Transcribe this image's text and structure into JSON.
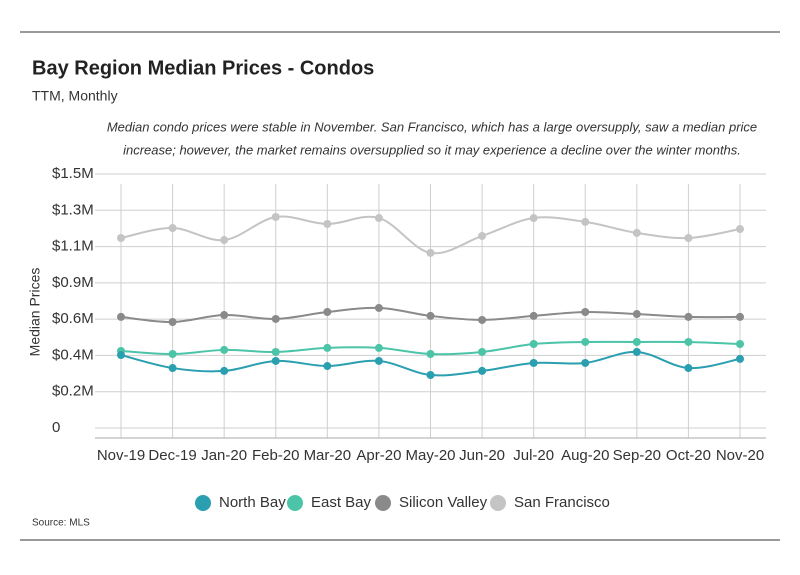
{
  "chart_data": {
    "type": "line",
    "title": "Bay Region Median Prices - Condos",
    "subtitle": "TTM, Monthly",
    "annotation": [
      "Median condo prices were stable in November. San Francisco, which has a large oversupply, saw a median price",
      "increase; however, the market remains oversupplied so it may experience a decline over the winter months."
    ],
    "y_label": "Median Prices",
    "source": "Source:  MLS",
    "categories": [
      "Nov-19",
      "Dec-19",
      "Jan-20",
      "Feb-20",
      "Mar-20",
      "Apr-20",
      "May-20",
      "Jun-20",
      "Jul-20",
      "Aug-20",
      "Sep-20",
      "Oct-20",
      "Nov-20"
    ],
    "series": [
      {
        "name": "North Bay",
        "color": "#2a9fb0",
        "values": [
          431000,
          354000,
          337000,
          396000,
          366000,
          396000,
          313000,
          337000,
          384000,
          384000,
          449000,
          354000,
          408000
        ]
      },
      {
        "name": "East Bay",
        "color": "#4cc4a8",
        "values": [
          455000,
          437000,
          461000,
          449000,
          473000,
          473000,
          437000,
          449000,
          496000,
          508000,
          508000,
          508000,
          496000
        ]
      },
      {
        "name": "Silicon Valley",
        "color": "#8a8a8a",
        "values": [
          656000,
          626000,
          667000,
          644000,
          685000,
          709000,
          662000,
          638000,
          662000,
          685000,
          673000,
          656000,
          656000
        ]
      },
      {
        "name": "San Francisco",
        "color": "#c4c4c4",
        "values": [
          1122000,
          1181000,
          1110000,
          1246000,
          1205000,
          1240000,
          1034000,
          1134000,
          1240000,
          1217000,
          1152000,
          1122000,
          1175000
        ]
      }
    ],
    "ylim": [
      0,
      1500000
    ],
    "yticks": [
      0,
      {
        "value": 214286,
        "label": "$0.2M"
      },
      {
        "value": 428571,
        "label": "$0.4M"
      },
      {
        "value": 642857,
        "label": "$0.6M"
      },
      {
        "value": 857143,
        "label": "$0.9M"
      },
      {
        "value": 1071429,
        "label": "$1.1M"
      },
      {
        "value": 1285714,
        "label": "$1.3M"
      },
      {
        "value": 1500000,
        "label": "$1.5M"
      }
    ],
    "grid": true,
    "legend": "bottom"
  }
}
